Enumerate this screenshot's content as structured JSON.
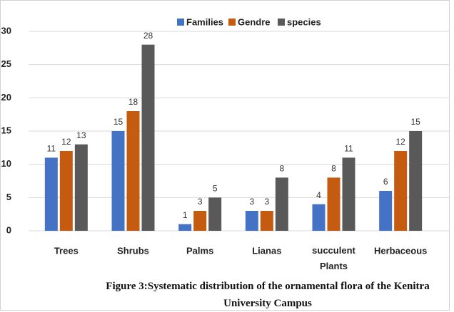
{
  "chart_data": {
    "type": "bar",
    "caption": "Figure 3:Systematic distribution of the ornamental flora of the Kenitra University Campus",
    "categories": [
      "Trees",
      "Shrubs",
      "Palms",
      "Lianas",
      "succulent Plants",
      "Herbaceous"
    ],
    "series": [
      {
        "name": "Families",
        "color": "#4472c4",
        "values": [
          11,
          15,
          1,
          3,
          4,
          6
        ]
      },
      {
        "name": "Gendre",
        "color": "#c55a11",
        "values": [
          12,
          18,
          3,
          3,
          8,
          12
        ]
      },
      {
        "name": "species",
        "color": "#595959",
        "values": [
          13,
          28,
          5,
          8,
          11,
          15
        ]
      }
    ],
    "ylim": [
      0,
      30
    ],
    "yticks": [
      0,
      5,
      10,
      15,
      20,
      25,
      30
    ],
    "grid": true,
    "legend": "top"
  }
}
